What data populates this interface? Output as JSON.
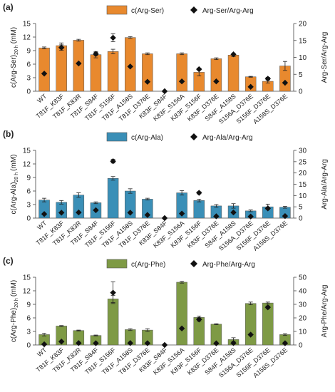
{
  "chart_data": [
    {
      "type": "bar",
      "panel_label": "(a)",
      "bar_color": "#E8892E",
      "categories": [
        "WT",
        "T81F_K83F",
        "T81F_K83R",
        "T81F_S84F",
        "T81F_S156F",
        "T81F_A158S",
        "T81F_D376E",
        "K83F_S84F",
        "K83F_S156A",
        "K83F_S156F",
        "K83F_D376E",
        "S84F_A158S",
        "S156A_D376E",
        "S156F_D376E",
        "A158S_D376E"
      ],
      "series": [
        {
          "name": "c(Arg-Ser)",
          "kind": "bar",
          "axis": "left",
          "values": [
            9.6,
            10.1,
            11.3,
            8.1,
            8.8,
            11.9,
            8.3,
            0,
            8.3,
            4.2,
            7.2,
            8.0,
            3.2,
            2.2,
            5.6
          ],
          "errors": [
            0.2,
            0.6,
            0.2,
            0.7,
            0.5,
            0.2,
            0.2,
            0,
            0.2,
            0.8,
            0.2,
            0.3,
            0.1,
            0.4,
            1.0
          ]
        },
        {
          "name": "Arg-Ser/Arg-Arg",
          "kind": "marker",
          "axis": "right",
          "values": [
            5.2,
            12.9,
            8.2,
            11.0,
            15.8,
            7.3,
            2.8,
            0,
            2.9,
            6.5,
            2.9,
            10.9,
            1.3,
            3.7,
            2.5
          ],
          "errors": [
            0,
            0.8,
            0,
            0.5,
            1.2,
            0,
            0,
            0,
            0,
            0.3,
            0,
            0,
            0,
            0.4,
            0
          ]
        }
      ],
      "left_axis": {
        "label_main": "c(Arg-Ser)",
        "label_sub": "20 h",
        "label_unit": "(mM)",
        "ylim": [
          0,
          15
        ],
        "ticks": [
          0,
          3,
          6,
          9,
          12,
          15
        ]
      },
      "right_axis": {
        "label": "Arg-Ser/Arg-Arg",
        "ylim": [
          0,
          20
        ],
        "ticks": [
          0,
          5,
          10,
          15,
          20
        ]
      },
      "legend_position": "top-center"
    },
    {
      "type": "bar",
      "panel_label": "(b)",
      "bar_color": "#3A8FB7",
      "categories": [
        "WT",
        "T81F_K83F",
        "T81F_K83R",
        "T81F_S84F",
        "T81F_S156F",
        "T81F_A158S",
        "T81F_D376E",
        "K83F_S84F",
        "K83F_S156A",
        "K83F_S156F",
        "K83F_D376E",
        "S84F_A158S",
        "S156A_D376E",
        "S156F_D376E",
        "A158S_D376E"
      ],
      "series": [
        {
          "name": "c(Arg-Ala)",
          "kind": "bar",
          "axis": "left",
          "values": [
            4.0,
            3.5,
            5.1,
            3.4,
            8.8,
            6.0,
            4.2,
            0,
            5.6,
            3.9,
            2.7,
            2.7,
            1.6,
            2.5,
            2.4
          ],
          "errors": [
            0.4,
            0.4,
            0.5,
            0.2,
            0.4,
            0.5,
            0.2,
            0,
            0.5,
            0.3,
            0.3,
            0.5,
            0.2,
            0.6,
            0.2
          ]
        },
        {
          "name": "Arg-Ala/Arg-Arg",
          "kind": "marker",
          "axis": "right",
          "values": [
            1.8,
            2.4,
            2.5,
            3.5,
            25.2,
            2.4,
            1.4,
            0,
            2.0,
            11.2,
            0.8,
            2.5,
            0.7,
            4.3,
            0.9
          ],
          "errors": [
            0,
            0,
            0,
            0,
            0.8,
            0,
            0,
            0,
            0,
            0.5,
            0,
            0,
            0,
            0,
            0
          ]
        }
      ],
      "left_axis": {
        "label_main": "c(Arg-Ala)",
        "label_sub": "20 h",
        "label_unit": "(mM)",
        "ylim": [
          0,
          15
        ],
        "ticks": [
          0,
          3,
          6,
          9,
          12,
          15
        ]
      },
      "right_axis": {
        "label": "Arg-Ala/Arg-Arg",
        "ylim": [
          0,
          30
        ],
        "ticks": [
          0,
          5,
          10,
          15,
          20,
          25,
          30
        ]
      },
      "legend_position": "top-center"
    },
    {
      "type": "bar",
      "panel_label": "(c)",
      "bar_color": "#7E9A45",
      "categories": [
        "WT",
        "T81F_K83F",
        "T81F_K83R",
        "T81F_S84F",
        "T81F_S156F",
        "T81F_A158S",
        "T81F_D376E",
        "K83F_S84F",
        "K83F_S156A",
        "K83F_S156F",
        "K83F_D376E",
        "S84F_A158S",
        "S156A_D376E",
        "S156F_D376E",
        "A158S_D376E"
      ],
      "series": [
        {
          "name": "c(Arg-Phe)",
          "kind": "bar",
          "axis": "left",
          "values": [
            2.3,
            4.2,
            3.2,
            2.1,
            10.2,
            3.4,
            3.3,
            0,
            13.9,
            6.1,
            4.6,
            1.2,
            9.2,
            9.3,
            2.3
          ],
          "errors": [
            0.3,
            0.1,
            0.1,
            0.1,
            0.8,
            0.2,
            0.3,
            0,
            0.2,
            0.3,
            0.1,
            0.4,
            0.3,
            0.2,
            0.2
          ]
        },
        {
          "name": "Arg-Phe/Arg-Arg",
          "kind": "marker",
          "axis": "right",
          "values": [
            0.5,
            2.5,
            1.4,
            1.3,
            38.6,
            1.4,
            1.3,
            0,
            12.2,
            18.8,
            1.2,
            1.4,
            7.6,
            27.8,
            1.3
          ],
          "errors": [
            0,
            0,
            0,
            0,
            8.0,
            0,
            0,
            0,
            0,
            1.2,
            0,
            0,
            0,
            1.0,
            0
          ]
        }
      ],
      "left_axis": {
        "label_main": "c(Arg-Phe)",
        "label_sub": "20 h",
        "label_unit": "(mM)",
        "ylim": [
          0,
          15
        ],
        "ticks": [
          0,
          3,
          6,
          9,
          12,
          15
        ]
      },
      "right_axis": {
        "label": "Arg-Phe/Arg-Arg",
        "ylim": [
          0,
          50
        ],
        "ticks": [
          0,
          10,
          20,
          30,
          40,
          50
        ]
      },
      "legend_position": "top-center"
    }
  ]
}
